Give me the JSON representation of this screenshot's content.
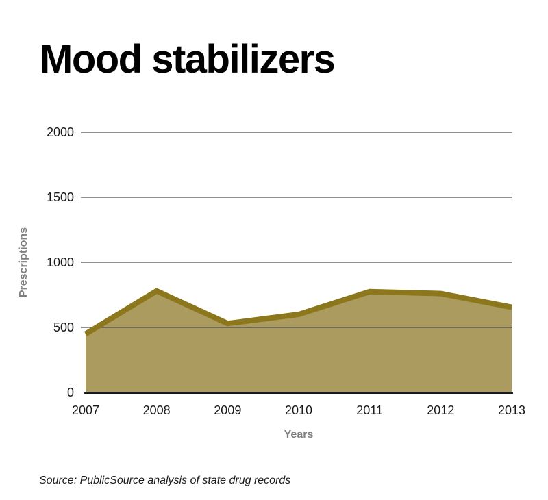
{
  "title": "Mood stabilizers",
  "source_note": "Source: PublicSource analysis of state drug records",
  "chart_data": {
    "type": "area",
    "title": "Mood stabilizers",
    "xlabel": "Years",
    "ylabel": "Prescriptions",
    "categories": [
      "2007",
      "2008",
      "2009",
      "2010",
      "2011",
      "2012",
      "2013"
    ],
    "values": [
      450,
      780,
      530,
      600,
      775,
      760,
      655
    ],
    "ylim": [
      0,
      2000
    ],
    "yticks": [
      0,
      500,
      1000,
      1500,
      2000
    ],
    "grid": true,
    "legend": "none",
    "colors": {
      "area_fill": "#AC9B5F",
      "line": "#8C771C",
      "gridline": "#4D4D4D",
      "axis_line": "#1A1A1A",
      "axis_title_text": "#808080",
      "tick_text": "#1A1A1A"
    }
  }
}
